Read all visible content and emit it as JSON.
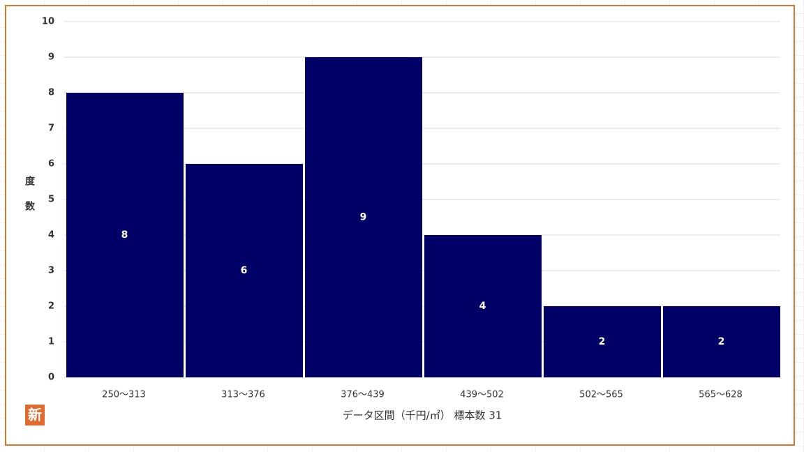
{
  "chart_data": {
    "type": "bar",
    "categories": [
      "250～313",
      "313～376",
      "376～439",
      "439～502",
      "502～565",
      "565～628"
    ],
    "values": [
      8,
      6,
      9,
      4,
      2,
      2
    ],
    "color": "#000066",
    "ylim": [
      0,
      10
    ],
    "yticks": [
      0,
      1,
      2,
      3,
      4,
      5,
      6,
      7,
      8,
      9,
      10
    ],
    "grid": true,
    "ylabel": "度数",
    "xlabel": "データ区間（千円/㎡） 標本数 31"
  },
  "badge": "新"
}
